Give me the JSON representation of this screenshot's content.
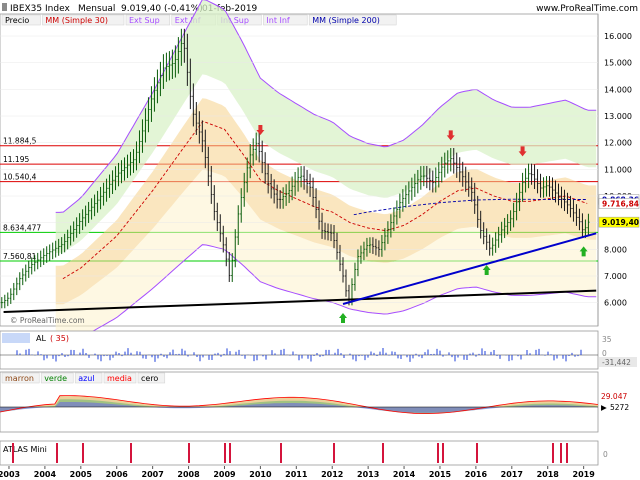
{
  "header": {
    "symbol": "IBEX35 Index",
    "period": "Mensual",
    "last": "9.019,40 (-0,41%)",
    "date": "01-feb-2019",
    "site": "www.ProRealTime.com"
  },
  "legend_main": [
    {
      "label": "Precio",
      "color": "#000000"
    },
    {
      "label": "MM (Simple 30)",
      "color": "#cc0000"
    },
    {
      "label": "Ext Sup",
      "color": "#a64dff"
    },
    {
      "label": "Ext Inf",
      "color": "#a64dff"
    },
    {
      "label": "Int Sup",
      "color": "#a64dff"
    },
    {
      "label": "Int Inf",
      "color": "#a64dff"
    },
    {
      "label": "MM (Simple 200)",
      "color": "#0000aa"
    }
  ],
  "watermark": "© ProRealTime.com",
  "horizontal_levels": [
    {
      "label": "11.884,5",
      "value": 11884.5,
      "color": "#dd0000"
    },
    {
      "label": "11.195",
      "value": 11195,
      "color": "#dd0000"
    },
    {
      "label": "10.540,4",
      "value": 10540.4,
      "color": "#dd0000"
    },
    {
      "label": "8.634,477",
      "value": 8634.477,
      "color": "#00cc00"
    },
    {
      "label": "7.560,81",
      "value": 7560.81,
      "color": "#00cc00"
    }
  ],
  "price_tags": [
    {
      "label": "9.868,36",
      "value": 9868.36,
      "color": "#0000aa",
      "bg": "#ffffff"
    },
    {
      "label": "9.716,84",
      "value": 9716.84,
      "color": "#cc0000",
      "bg": "#ffffff"
    },
    {
      "label": "9.019,40",
      "value": 9019.4,
      "color": "#000000",
      "bg": "#ffff00"
    }
  ],
  "al_panel": {
    "legend": [
      "AL",
      "( 35)"
    ],
    "scale": [
      "35",
      "0",
      "-31,442"
    ]
  },
  "osc_panel": {
    "legend": [
      "marron",
      "verde",
      "azul",
      "media",
      "cero"
    ],
    "legend_colors": [
      "#8b4513",
      "#008000",
      "#0000ff",
      "#ff0000",
      "#000000"
    ],
    "scale": [
      "29.047",
      "5272"
    ]
  },
  "atlas_panel": {
    "legend": "ATLAS Mini",
    "scale": "0"
  },
  "chart_data": {
    "type": "line",
    "title": "IBEX35 Index Mensual",
    "x_ticks": [
      "2003",
      "2004",
      "2005",
      "2006",
      "2007",
      "2008",
      "2009",
      "2010",
      "2011",
      "2012",
      "2013",
      "2014",
      "2015",
      "2016",
      "2017",
      "2018",
      "2019"
    ],
    "y_ticks": [
      16000,
      15000,
      14000,
      13000,
      12000,
      11000,
      10000,
      9000,
      8000,
      7000,
      6000
    ],
    "y_tick_labels": [
      "16.000",
      "15.000",
      "14.000",
      "13.000",
      "12.000",
      "11.000",
      "10.000",
      "9.000",
      "8.000",
      "7.000",
      "6.000"
    ],
    "ylim": [
      5200,
      16600
    ],
    "xlim": [
      2002.75,
      2019.4
    ],
    "series": [
      {
        "name": "Precio",
        "color": "#0a5c0a",
        "x": [
          2002.8,
          2003.0,
          2003.3,
          2003.6,
          2004.0,
          2004.5,
          2005.0,
          2005.5,
          2006.0,
          2006.5,
          2007.0,
          2007.3,
          2007.6,
          2007.85,
          2008.1,
          2008.4,
          2008.7,
          2009.0,
          2009.15,
          2009.4,
          2009.7,
          2009.9,
          2010.2,
          2010.5,
          2010.8,
          2011.1,
          2011.4,
          2011.7,
          2012.0,
          2012.3,
          2012.45,
          2012.7,
          2013.0,
          2013.3,
          2013.6,
          2013.9,
          2014.2,
          2014.5,
          2014.8,
          2015.1,
          2015.3,
          2015.6,
          2015.9,
          2016.1,
          2016.4,
          2016.7,
          2017.0,
          2017.3,
          2017.5,
          2017.8,
          2018.0,
          2018.3,
          2018.6,
          2018.9,
          2019.0,
          2019.1
        ],
        "values": [
          6000,
          6200,
          6900,
          7400,
          7800,
          8200,
          9100,
          9900,
          10800,
          11400,
          13800,
          14800,
          15000,
          15900,
          13200,
          12000,
          9500,
          8000,
          6900,
          9500,
          11500,
          12000,
          10500,
          9800,
          10200,
          10800,
          10300,
          8700,
          8600,
          7000,
          6000,
          7700,
          8200,
          8000,
          8900,
          9800,
          10300,
          10800,
          10500,
          11200,
          11400,
          10800,
          10100,
          8800,
          8000,
          8700,
          9200,
          10500,
          10900,
          10300,
          10400,
          10000,
          9600,
          9000,
          8600,
          9019
        ]
      },
      {
        "name": "MM (Simple 30)",
        "color": "#cc0000",
        "x": [
          2004.5,
          2005.0,
          2006.0,
          2007.0,
          2007.8,
          2008.4,
          2009.0,
          2009.5,
          2010.0,
          2010.5,
          2011.0,
          2011.5,
          2012.0,
          2012.5,
          2013.0,
          2013.5,
          2014.0,
          2014.5,
          2015.0,
          2015.5,
          2016.0,
          2016.5,
          2017.0,
          2017.5,
          2018.0,
          2018.5,
          2019.1
        ],
        "values": [
          6900,
          7300,
          8500,
          10200,
          11700,
          12800,
          12500,
          11600,
          10600,
          10200,
          9900,
          9600,
          9400,
          9000,
          8800,
          8700,
          8900,
          9300,
          9800,
          10200,
          10300,
          10000,
          9800,
          9800,
          9900,
          10000,
          9717
        ]
      },
      {
        "name": "MM (Simple 200)",
        "color": "#0000aa",
        "x": [
          2012.6,
          2013.0,
          2014.0,
          2015.0,
          2016.0,
          2017.0,
          2018.0,
          2019.1
        ],
        "values": [
          9300,
          9400,
          9600,
          9750,
          9850,
          9880,
          9870,
          9868
        ]
      }
    ],
    "trendlines": [
      {
        "color": "#000000",
        "x": [
          2002.85,
          2019.35
        ],
        "values": [
          5650,
          6450
        ]
      },
      {
        "color": "#0000cc",
        "x": [
          2012.3,
          2019.35
        ],
        "values": [
          5950,
          8600
        ]
      }
    ],
    "arrows_down": [
      {
        "x": 2010.0,
        "y": 12400
      },
      {
        "x": 2015.3,
        "y": 12200
      },
      {
        "x": 2017.3,
        "y": 11600
      }
    ],
    "arrows_up": [
      {
        "x": 2012.3,
        "y": 5500
      },
      {
        "x": 2016.3,
        "y": 7300
      },
      {
        "x": 2019.0,
        "y": 8000
      }
    ]
  }
}
